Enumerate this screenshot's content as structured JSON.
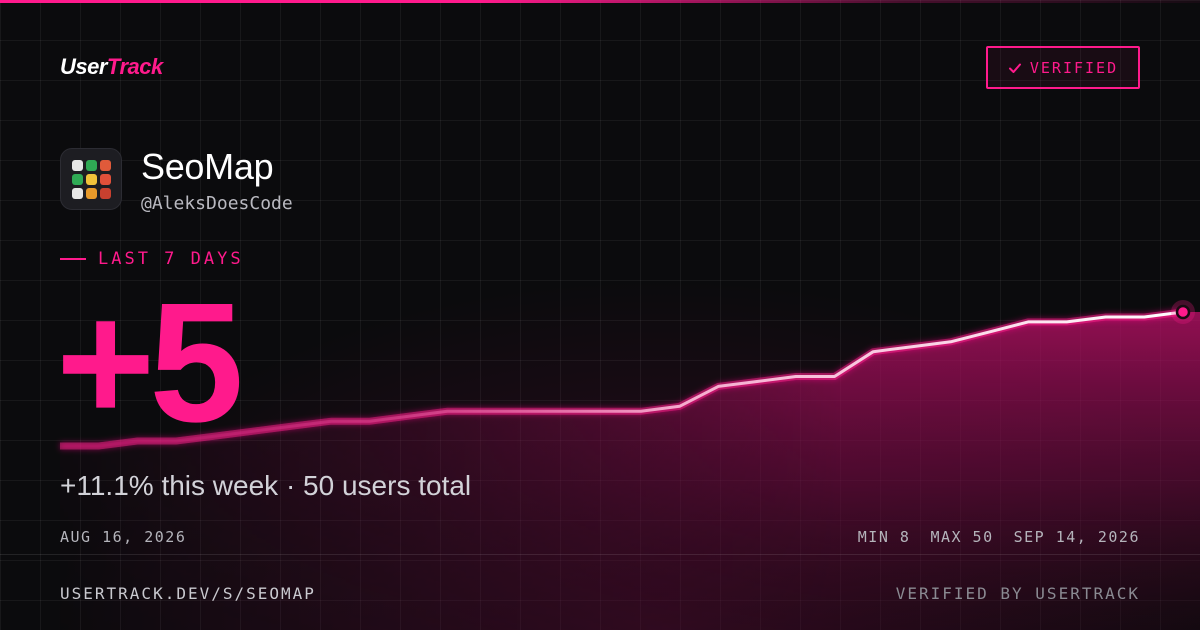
{
  "brand": {
    "logo_main": "User",
    "logo_accent": "Track"
  },
  "badge": {
    "label": "VERIFIED"
  },
  "app": {
    "name": "SeoMap",
    "handle": "@AleksDoesCode",
    "icon_colors": [
      "#e6e6e6",
      "#2faa55",
      "#e05a3a",
      "#2faa55",
      "#f0c23a",
      "#e0503a",
      "#e6e6e6",
      "#e89a2a",
      "#c8402f"
    ]
  },
  "period": {
    "label": "LAST 7 DAYS"
  },
  "delta": {
    "value": "+5"
  },
  "summary": {
    "text": "+11.1% this week · 50 users total"
  },
  "range": {
    "start": "AUG 16, 2026",
    "min_label": "MIN 8",
    "max_label": "MAX 50",
    "end": "SEP 14, 2026"
  },
  "footer": {
    "url": "USERTRACK.DEV/S/SEOMAP",
    "verified_by": "VERIFIED BY USERTRACK"
  },
  "colors": {
    "accent": "#ff1a8c",
    "background": "#0b0b0d"
  },
  "chart_data": {
    "type": "area",
    "x": [
      "2026-08-16",
      "2026-08-17",
      "2026-08-18",
      "2026-08-19",
      "2026-08-20",
      "2026-08-21",
      "2026-08-22",
      "2026-08-23",
      "2026-08-24",
      "2026-08-25",
      "2026-08-26",
      "2026-08-27",
      "2026-08-28",
      "2026-08-29",
      "2026-08-30",
      "2026-08-31",
      "2026-09-01",
      "2026-09-02",
      "2026-09-03",
      "2026-09-04",
      "2026-09-05",
      "2026-09-06",
      "2026-09-07",
      "2026-09-08",
      "2026-09-09",
      "2026-09-10",
      "2026-09-11",
      "2026-09-12",
      "2026-09-13",
      "2026-09-14"
    ],
    "values": [
      8,
      8,
      9,
      9,
      10,
      11,
      12,
      13,
      13,
      14,
      15,
      15,
      15,
      15,
      15,
      15,
      16,
      20,
      21,
      22,
      22,
      27,
      28,
      29,
      31,
      33,
      33,
      34,
      34,
      35
    ],
    "ylim": [
      8,
      50
    ],
    "grid": true
  }
}
